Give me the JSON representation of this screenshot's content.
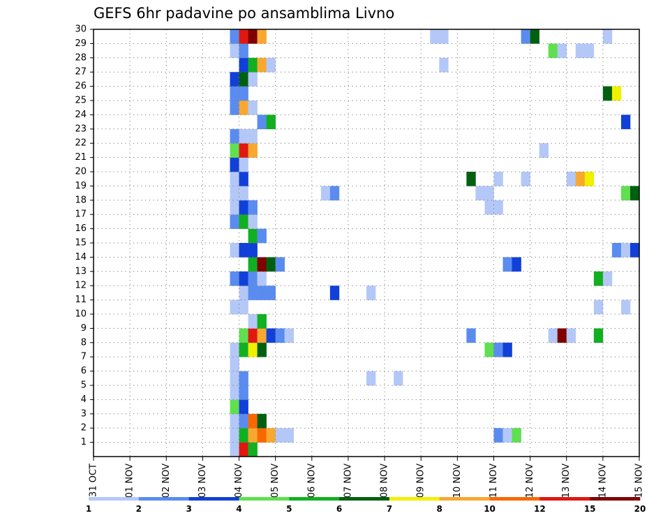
{
  "chart_data": {
    "type": "heatmap",
    "title": "GEFS 6hr padavine po ansamblima Livno",
    "xlabel": "",
    "ylabel": "",
    "x_tick_labels": [
      "31 OCT",
      "01 NOV",
      "02 NOV",
      "03 NOV",
      "04 NOV",
      "05 NOV",
      "06 NOV",
      "07 NOV",
      "08 NOV",
      "09 NOV",
      "10 NOV",
      "11 NOV",
      "12 NOV",
      "13 NOV",
      "14 NOV",
      "15 NOV"
    ],
    "steps_per_day": 4,
    "y_tick_labels": [
      "1",
      "2",
      "3",
      "4",
      "5",
      "6",
      "7",
      "8",
      "9",
      "10",
      "11",
      "12",
      "13",
      "14",
      "15",
      "16",
      "17",
      "18",
      "19",
      "20",
      "21",
      "22",
      "23",
      "24",
      "25",
      "26",
      "27",
      "28",
      "29",
      "30"
    ],
    "member_range": [
      0,
      30
    ],
    "legend": {
      "thresholds": [
        "1",
        "2",
        "3",
        "4",
        "5",
        "6",
        "7",
        "8",
        "10",
        "12",
        "15",
        "20"
      ],
      "colors": [
        "#b4c8f8",
        "#5a8cf0",
        "#1040d8",
        "#60e050",
        "#10b020",
        "#006010",
        "#f0f000",
        "#f8a830",
        "#f86800",
        "#e01810",
        "#800000"
      ]
    },
    "cells": [
      [
        3.75,
        0,
        1
      ],
      [
        4.0,
        0,
        10
      ],
      [
        4.25,
        0,
        5
      ],
      [
        3.75,
        1,
        1
      ],
      [
        4.0,
        1,
        5
      ],
      [
        4.25,
        1,
        8
      ],
      [
        4.5,
        1,
        9
      ],
      [
        4.75,
        1,
        8
      ],
      [
        5.0,
        1,
        1
      ],
      [
        5.25,
        1,
        1
      ],
      [
        11.0,
        1,
        2
      ],
      [
        11.25,
        1,
        1
      ],
      [
        11.5,
        1,
        4
      ],
      [
        3.75,
        2,
        1
      ],
      [
        4.0,
        2,
        2
      ],
      [
        4.25,
        2,
        9
      ],
      [
        4.5,
        2,
        6
      ],
      [
        3.75,
        3,
        4
      ],
      [
        4.0,
        3,
        3
      ],
      [
        3.75,
        4,
        1
      ],
      [
        4.0,
        4,
        2
      ],
      [
        3.75,
        5,
        1
      ],
      [
        4.0,
        5,
        2
      ],
      [
        7.5,
        5,
        1
      ],
      [
        8.25,
        5,
        1
      ],
      [
        3.75,
        6,
        1
      ],
      [
        3.75,
        7,
        1
      ],
      [
        4.0,
        7,
        5
      ],
      [
        4.25,
        7,
        7
      ],
      [
        4.5,
        7,
        6
      ],
      [
        10.75,
        7,
        4
      ],
      [
        11.0,
        7,
        2
      ],
      [
        11.25,
        7,
        3
      ],
      [
        4.0,
        8,
        4
      ],
      [
        4.25,
        8,
        10
      ],
      [
        4.5,
        8,
        8
      ],
      [
        4.75,
        8,
        3
      ],
      [
        5.0,
        8,
        2
      ],
      [
        5.25,
        8,
        1
      ],
      [
        10.25,
        8,
        2
      ],
      [
        12.5,
        8,
        1
      ],
      [
        12.75,
        8,
        11
      ],
      [
        13.0,
        8,
        1
      ],
      [
        13.75,
        8,
        5
      ],
      [
        4.25,
        9,
        1
      ],
      [
        4.5,
        9,
        5
      ],
      [
        3.75,
        10,
        1
      ],
      [
        4.0,
        10,
        1
      ],
      [
        13.75,
        10,
        1
      ],
      [
        14.5,
        10,
        1
      ],
      [
        4.0,
        11,
        1
      ],
      [
        4.25,
        11,
        2
      ],
      [
        4.5,
        11,
        2
      ],
      [
        4.75,
        11,
        2
      ],
      [
        6.5,
        11,
        3
      ],
      [
        7.5,
        11,
        1
      ],
      [
        3.75,
        12,
        2
      ],
      [
        4.0,
        12,
        3
      ],
      [
        4.25,
        12,
        2
      ],
      [
        4.5,
        12,
        1
      ],
      [
        13.75,
        12,
        5
      ],
      [
        14.0,
        12,
        1
      ],
      [
        4.25,
        13,
        5
      ],
      [
        4.5,
        13,
        11
      ],
      [
        4.75,
        13,
        6
      ],
      [
        5.0,
        13,
        2
      ],
      [
        11.25,
        13,
        2
      ],
      [
        11.5,
        13,
        3
      ],
      [
        3.75,
        14,
        1
      ],
      [
        4.0,
        14,
        3
      ],
      [
        4.25,
        14,
        3
      ],
      [
        14.25,
        14,
        2
      ],
      [
        14.5,
        14,
        1
      ],
      [
        14.75,
        14,
        3
      ],
      [
        4.25,
        15,
        5
      ],
      [
        4.5,
        15,
        2
      ],
      [
        3.75,
        16,
        2
      ],
      [
        4.0,
        16,
        5
      ],
      [
        4.25,
        16,
        1
      ],
      [
        3.75,
        17,
        1
      ],
      [
        4.0,
        17,
        3
      ],
      [
        4.25,
        17,
        2
      ],
      [
        10.75,
        17,
        1
      ],
      [
        11.0,
        17,
        1
      ],
      [
        3.75,
        18,
        1
      ],
      [
        4.0,
        18,
        1
      ],
      [
        6.25,
        18,
        1
      ],
      [
        6.5,
        18,
        2
      ],
      [
        10.5,
        18,
        1
      ],
      [
        10.75,
        18,
        1
      ],
      [
        14.5,
        18,
        4
      ],
      [
        14.75,
        18,
        6
      ],
      [
        3.75,
        19,
        1
      ],
      [
        4.0,
        19,
        3
      ],
      [
        10.25,
        19,
        6
      ],
      [
        11.0,
        19,
        1
      ],
      [
        11.75,
        19,
        1
      ],
      [
        13.0,
        19,
        1
      ],
      [
        13.25,
        19,
        8
      ],
      [
        13.5,
        19,
        7
      ],
      [
        3.75,
        20,
        3
      ],
      [
        4.0,
        20,
        1
      ],
      [
        3.75,
        21,
        4
      ],
      [
        4.0,
        21,
        10
      ],
      [
        4.25,
        21,
        8
      ],
      [
        12.25,
        21,
        1
      ],
      [
        3.75,
        22,
        2
      ],
      [
        4.0,
        22,
        1
      ],
      [
        4.25,
        22,
        1
      ],
      [
        4.5,
        23,
        2
      ],
      [
        4.75,
        23,
        5
      ],
      [
        14.5,
        23,
        3
      ],
      [
        3.75,
        24,
        2
      ],
      [
        4.0,
        24,
        8
      ],
      [
        4.25,
        24,
        1
      ],
      [
        3.75,
        25,
        2
      ],
      [
        4.0,
        25,
        2
      ],
      [
        14.0,
        25,
        6
      ],
      [
        14.25,
        25,
        7
      ],
      [
        3.75,
        26,
        3
      ],
      [
        4.0,
        26,
        6
      ],
      [
        4.25,
        26,
        1
      ],
      [
        4.0,
        27,
        3
      ],
      [
        4.25,
        27,
        5
      ],
      [
        4.5,
        27,
        8
      ],
      [
        4.75,
        27,
        1
      ],
      [
        9.5,
        27,
        1
      ],
      [
        3.75,
        28,
        1
      ],
      [
        4.0,
        28,
        2
      ],
      [
        12.5,
        28,
        4
      ],
      [
        12.75,
        28,
        1
      ],
      [
        13.25,
        28,
        1
      ],
      [
        13.5,
        28,
        1
      ],
      [
        3.75,
        29,
        2
      ],
      [
        4.0,
        29,
        10
      ],
      [
        4.25,
        29,
        11
      ],
      [
        4.5,
        29,
        8
      ],
      [
        9.25,
        29,
        1
      ],
      [
        9.5,
        29,
        1
      ],
      [
        11.75,
        29,
        2
      ],
      [
        12.0,
        29,
        6
      ],
      [
        14.0,
        29,
        1
      ]
    ]
  }
}
